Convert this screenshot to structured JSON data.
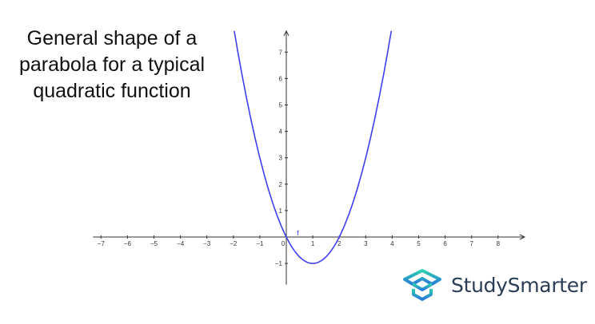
{
  "title_lines": [
    "General shape of a",
    "parabola for a typical",
    "quadratic function"
  ],
  "chart_data": {
    "type": "line",
    "function": "f(x) = x^2 - 2x",
    "function_label": "f",
    "vertex": [
      1,
      -1
    ],
    "roots": [
      0,
      2
    ],
    "xlim": [
      -7.3,
      9
    ],
    "ylim": [
      -1.8,
      7.8
    ],
    "x_ticks": [
      -7,
      -6,
      -5,
      -4,
      -3,
      -2,
      -1,
      0,
      1,
      2,
      3,
      4,
      5,
      6,
      7,
      8
    ],
    "y_ticks": [
      -1,
      1,
      2,
      3,
      4,
      5,
      6,
      7
    ],
    "grid": false,
    "line_color": "#3f3ff0"
  },
  "brand": {
    "name": "StudySmarter",
    "text_color": "#2b3d55",
    "icon": "open-box-logo-icon",
    "gradient": [
      "#2ad0b0",
      "#2a7ad8"
    ]
  }
}
